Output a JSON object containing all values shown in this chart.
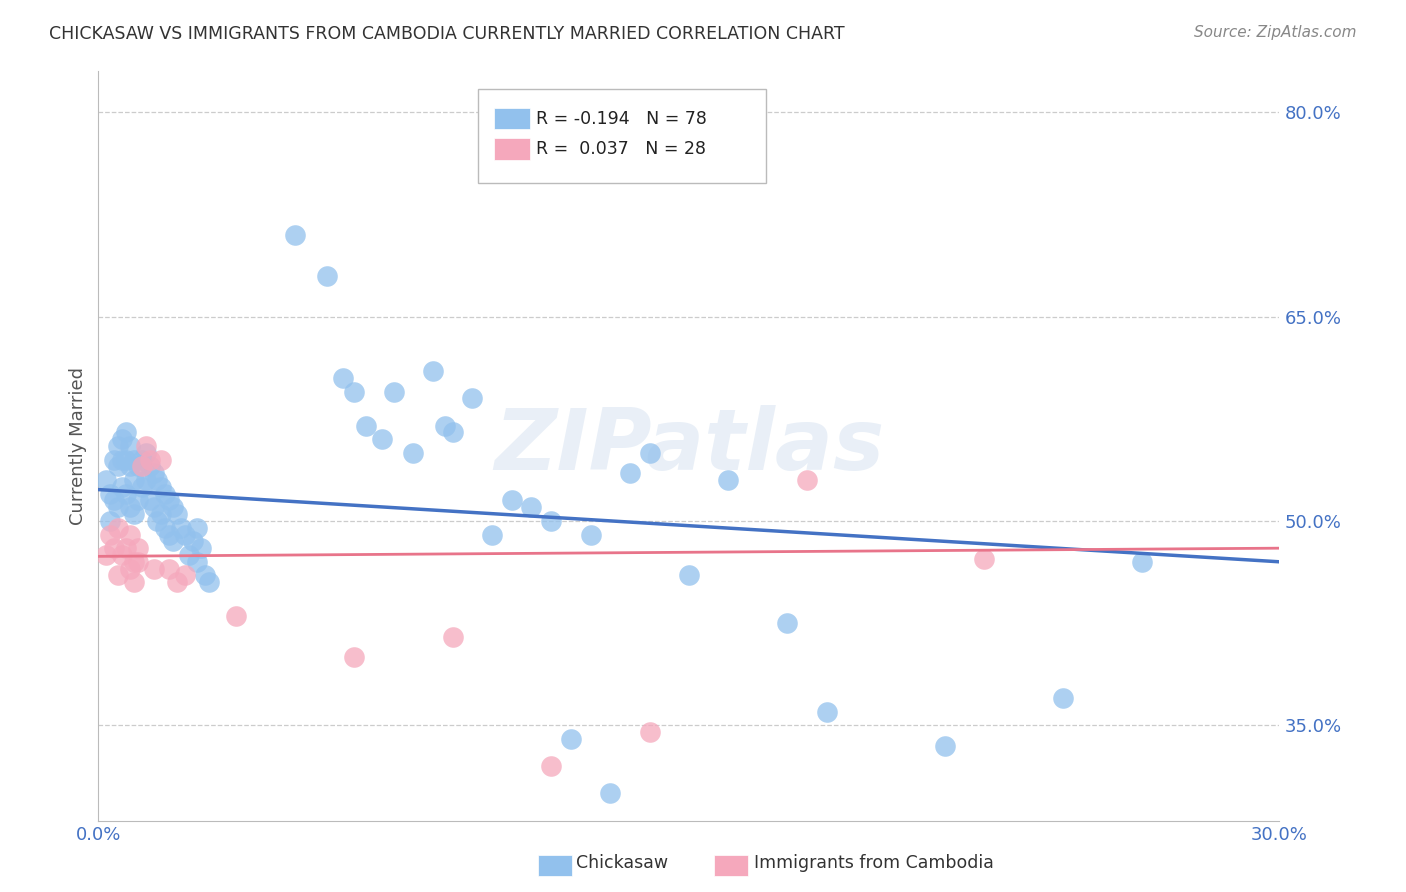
{
  "title": "CHICKASAW VS IMMIGRANTS FROM CAMBODIA CURRENTLY MARRIED CORRELATION CHART",
  "source": "Source: ZipAtlas.com",
  "ylabel": "Currently Married",
  "xlim": [
    0.0,
    0.3
  ],
  "ylim": [
    0.28,
    0.83
  ],
  "ytick_positions": [
    0.35,
    0.5,
    0.65,
    0.8
  ],
  "ytick_labels": [
    "35.0%",
    "50.0%",
    "65.0%",
    "80.0%"
  ],
  "blue_color": "#92C1ED",
  "pink_color": "#F5A8BC",
  "trendline_blue": "#4472C4",
  "trendline_pink": "#E8748A",
  "legend_R_blue": "-0.194",
  "legend_N_blue": "78",
  "legend_R_pink": "0.037",
  "legend_N_pink": "28",
  "legend_label_blue": "Chickasaw",
  "legend_label_pink": "Immigrants from Cambodia",
  "watermark": "ZIPatlas",
  "blue_x": [
    0.002,
    0.003,
    0.003,
    0.004,
    0.004,
    0.005,
    0.005,
    0.005,
    0.006,
    0.006,
    0.006,
    0.007,
    0.007,
    0.007,
    0.008,
    0.008,
    0.008,
    0.009,
    0.009,
    0.009,
    0.01,
    0.01,
    0.011,
    0.011,
    0.012,
    0.012,
    0.013,
    0.013,
    0.014,
    0.014,
    0.015,
    0.015,
    0.016,
    0.016,
    0.017,
    0.017,
    0.018,
    0.018,
    0.019,
    0.019,
    0.02,
    0.021,
    0.022,
    0.023,
    0.024,
    0.025,
    0.025,
    0.026,
    0.027,
    0.028,
    0.05,
    0.058,
    0.062,
    0.065,
    0.068,
    0.072,
    0.075,
    0.08,
    0.085,
    0.088,
    0.09,
    0.095,
    0.1,
    0.105,
    0.11,
    0.115,
    0.12,
    0.125,
    0.13,
    0.135,
    0.14,
    0.15,
    0.16,
    0.175,
    0.185,
    0.215,
    0.245,
    0.265
  ],
  "blue_y": [
    0.53,
    0.52,
    0.5,
    0.545,
    0.515,
    0.555,
    0.54,
    0.51,
    0.56,
    0.545,
    0.525,
    0.565,
    0.545,
    0.52,
    0.555,
    0.54,
    0.51,
    0.545,
    0.53,
    0.505,
    0.54,
    0.515,
    0.545,
    0.525,
    0.55,
    0.53,
    0.54,
    0.515,
    0.535,
    0.51,
    0.53,
    0.5,
    0.525,
    0.505,
    0.52,
    0.495,
    0.515,
    0.49,
    0.51,
    0.485,
    0.505,
    0.495,
    0.49,
    0.475,
    0.485,
    0.47,
    0.495,
    0.48,
    0.46,
    0.455,
    0.71,
    0.68,
    0.605,
    0.595,
    0.57,
    0.56,
    0.595,
    0.55,
    0.61,
    0.57,
    0.565,
    0.59,
    0.49,
    0.515,
    0.51,
    0.5,
    0.34,
    0.49,
    0.3,
    0.535,
    0.55,
    0.46,
    0.53,
    0.425,
    0.36,
    0.335,
    0.37,
    0.47
  ],
  "pink_x": [
    0.002,
    0.003,
    0.004,
    0.005,
    0.005,
    0.006,
    0.007,
    0.008,
    0.008,
    0.009,
    0.009,
    0.01,
    0.01,
    0.011,
    0.012,
    0.013,
    0.014,
    0.016,
    0.018,
    0.02,
    0.022,
    0.035,
    0.065,
    0.09,
    0.115,
    0.14,
    0.18,
    0.225
  ],
  "pink_y": [
    0.475,
    0.49,
    0.48,
    0.495,
    0.46,
    0.475,
    0.48,
    0.465,
    0.49,
    0.47,
    0.455,
    0.47,
    0.48,
    0.54,
    0.555,
    0.545,
    0.465,
    0.545,
    0.465,
    0.455,
    0.46,
    0.43,
    0.4,
    0.415,
    0.32,
    0.345,
    0.53,
    0.472
  ],
  "background_color": "#FFFFFF",
  "grid_color": "#CCCCCC",
  "title_color": "#333333",
  "axis_color": "#4472C4",
  "source_color": "#888888"
}
